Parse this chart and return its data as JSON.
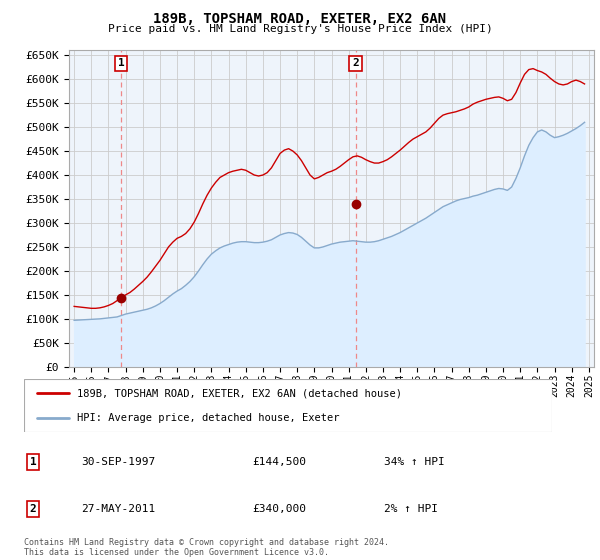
{
  "title1": "189B, TOPSHAM ROAD, EXETER, EX2 6AN",
  "title2": "Price paid vs. HM Land Registry's House Price Index (HPI)",
  "yticks": [
    0,
    50000,
    100000,
    150000,
    200000,
    250000,
    300000,
    350000,
    400000,
    450000,
    500000,
    550000,
    600000,
    650000
  ],
  "ytick_labels": [
    "£0",
    "£50K",
    "£100K",
    "£150K",
    "£200K",
    "£250K",
    "£300K",
    "£350K",
    "£400K",
    "£450K",
    "£500K",
    "£550K",
    "£600K",
    "£650K"
  ],
  "xlim_start": 1994.7,
  "xlim_end": 2025.3,
  "ylim_min": 0,
  "ylim_max": 660000,
  "sale1_x": 1997.75,
  "sale1_y": 144500,
  "sale1_label": "1",
  "sale2_x": 2011.4,
  "sale2_y": 340000,
  "sale2_label": "2",
  "line_color_red": "#cc0000",
  "line_color_blue": "#88aacc",
  "fill_color_blue": "#ddeeff",
  "dot_color": "#990000",
  "vline_color": "#ee8888",
  "grid_color": "#cccccc",
  "background_color": "#ffffff",
  "plot_bg_color": "#eef4fb",
  "legend_line1": "189B, TOPSHAM ROAD, EXETER, EX2 6AN (detached house)",
  "legend_line2": "HPI: Average price, detached house, Exeter",
  "sale_rows": [
    {
      "num": "1",
      "date": "30-SEP-1997",
      "price": "£144,500",
      "hpi": "34% ↑ HPI"
    },
    {
      "num": "2",
      "date": "27-MAY-2011",
      "price": "£340,000",
      "hpi": "2% ↑ HPI"
    }
  ],
  "footnote": "Contains HM Land Registry data © Crown copyright and database right 2024.\nThis data is licensed under the Open Government Licence v3.0.",
  "xtick_years": [
    1995,
    1996,
    1997,
    1998,
    1999,
    2000,
    2001,
    2002,
    2003,
    2004,
    2005,
    2006,
    2007,
    2008,
    2009,
    2010,
    2011,
    2012,
    2013,
    2014,
    2015,
    2016,
    2017,
    2018,
    2019,
    2020,
    2021,
    2022,
    2023,
    2024,
    2025
  ],
  "hpi_years": [
    1995.0,
    1995.25,
    1995.5,
    1995.75,
    1996.0,
    1996.25,
    1996.5,
    1996.75,
    1997.0,
    1997.25,
    1997.5,
    1997.75,
    1998.0,
    1998.25,
    1998.5,
    1998.75,
    1999.0,
    1999.25,
    1999.5,
    1999.75,
    2000.0,
    2000.25,
    2000.5,
    2000.75,
    2001.0,
    2001.25,
    2001.5,
    2001.75,
    2002.0,
    2002.25,
    2002.5,
    2002.75,
    2003.0,
    2003.25,
    2003.5,
    2003.75,
    2004.0,
    2004.25,
    2004.5,
    2004.75,
    2005.0,
    2005.25,
    2005.5,
    2005.75,
    2006.0,
    2006.25,
    2006.5,
    2006.75,
    2007.0,
    2007.25,
    2007.5,
    2007.75,
    2008.0,
    2008.25,
    2008.5,
    2008.75,
    2009.0,
    2009.25,
    2009.5,
    2009.75,
    2010.0,
    2010.25,
    2010.5,
    2010.75,
    2011.0,
    2011.25,
    2011.5,
    2011.75,
    2012.0,
    2012.25,
    2012.5,
    2012.75,
    2013.0,
    2013.25,
    2013.5,
    2013.75,
    2014.0,
    2014.25,
    2014.5,
    2014.75,
    2015.0,
    2015.25,
    2015.5,
    2015.75,
    2016.0,
    2016.25,
    2016.5,
    2016.75,
    2017.0,
    2017.25,
    2017.5,
    2017.75,
    2018.0,
    2018.25,
    2018.5,
    2018.75,
    2019.0,
    2019.25,
    2019.5,
    2019.75,
    2020.0,
    2020.25,
    2020.5,
    2020.75,
    2021.0,
    2021.25,
    2021.5,
    2021.75,
    2022.0,
    2022.25,
    2022.5,
    2022.75,
    2023.0,
    2023.25,
    2023.5,
    2023.75,
    2024.0,
    2024.25,
    2024.5,
    2024.75
  ],
  "hpi_values": [
    97000,
    97500,
    98000,
    98500,
    99000,
    99500,
    100000,
    101000,
    102000,
    103000,
    104000,
    107000,
    110000,
    112000,
    114000,
    116000,
    118000,
    120000,
    123000,
    127000,
    132000,
    138000,
    145000,
    152000,
    158000,
    163000,
    170000,
    178000,
    188000,
    200000,
    213000,
    225000,
    235000,
    242000,
    248000,
    252000,
    255000,
    258000,
    260000,
    261000,
    261000,
    260000,
    259000,
    259000,
    260000,
    262000,
    265000,
    270000,
    275000,
    278000,
    280000,
    279000,
    276000,
    270000,
    262000,
    254000,
    248000,
    248000,
    250000,
    253000,
    256000,
    258000,
    260000,
    261000,
    262000,
    263000,
    262000,
    261000,
    260000,
    260000,
    261000,
    263000,
    266000,
    269000,
    272000,
    276000,
    280000,
    285000,
    290000,
    295000,
    300000,
    305000,
    310000,
    316000,
    322000,
    328000,
    334000,
    338000,
    342000,
    346000,
    349000,
    351000,
    353000,
    356000,
    358000,
    361000,
    364000,
    367000,
    370000,
    372000,
    371000,
    368000,
    375000,
    393000,
    415000,
    440000,
    462000,
    478000,
    490000,
    494000,
    490000,
    483000,
    478000,
    480000,
    483000,
    487000,
    492000,
    497000,
    503000,
    510000
  ],
  "prop_values": [
    126000,
    125000,
    124000,
    123000,
    122000,
    122000,
    123000,
    125000,
    128000,
    132000,
    138000,
    144500,
    150000,
    155000,
    162000,
    170000,
    178000,
    187000,
    198000,
    210000,
    222000,
    236000,
    250000,
    260000,
    268000,
    272000,
    278000,
    288000,
    302000,
    320000,
    340000,
    358000,
    373000,
    385000,
    395000,
    400000,
    405000,
    408000,
    410000,
    412000,
    410000,
    405000,
    400000,
    398000,
    400000,
    405000,
    415000,
    430000,
    445000,
    452000,
    455000,
    450000,
    442000,
    430000,
    415000,
    400000,
    392000,
    395000,
    400000,
    405000,
    408000,
    412000,
    418000,
    425000,
    432000,
    438000,
    440000,
    437000,
    432000,
    428000,
    425000,
    425000,
    428000,
    432000,
    438000,
    445000,
    452000,
    460000,
    468000,
    475000,
    480000,
    485000,
    490000,
    498000,
    508000,
    518000,
    525000,
    528000,
    530000,
    532000,
    535000,
    538000,
    542000,
    548000,
    552000,
    555000,
    558000,
    560000,
    562000,
    563000,
    560000,
    555000,
    558000,
    572000,
    592000,
    610000,
    620000,
    622000,
    618000,
    615000,
    610000,
    602000,
    595000,
    590000,
    588000,
    590000,
    595000,
    598000,
    595000,
    590000
  ]
}
